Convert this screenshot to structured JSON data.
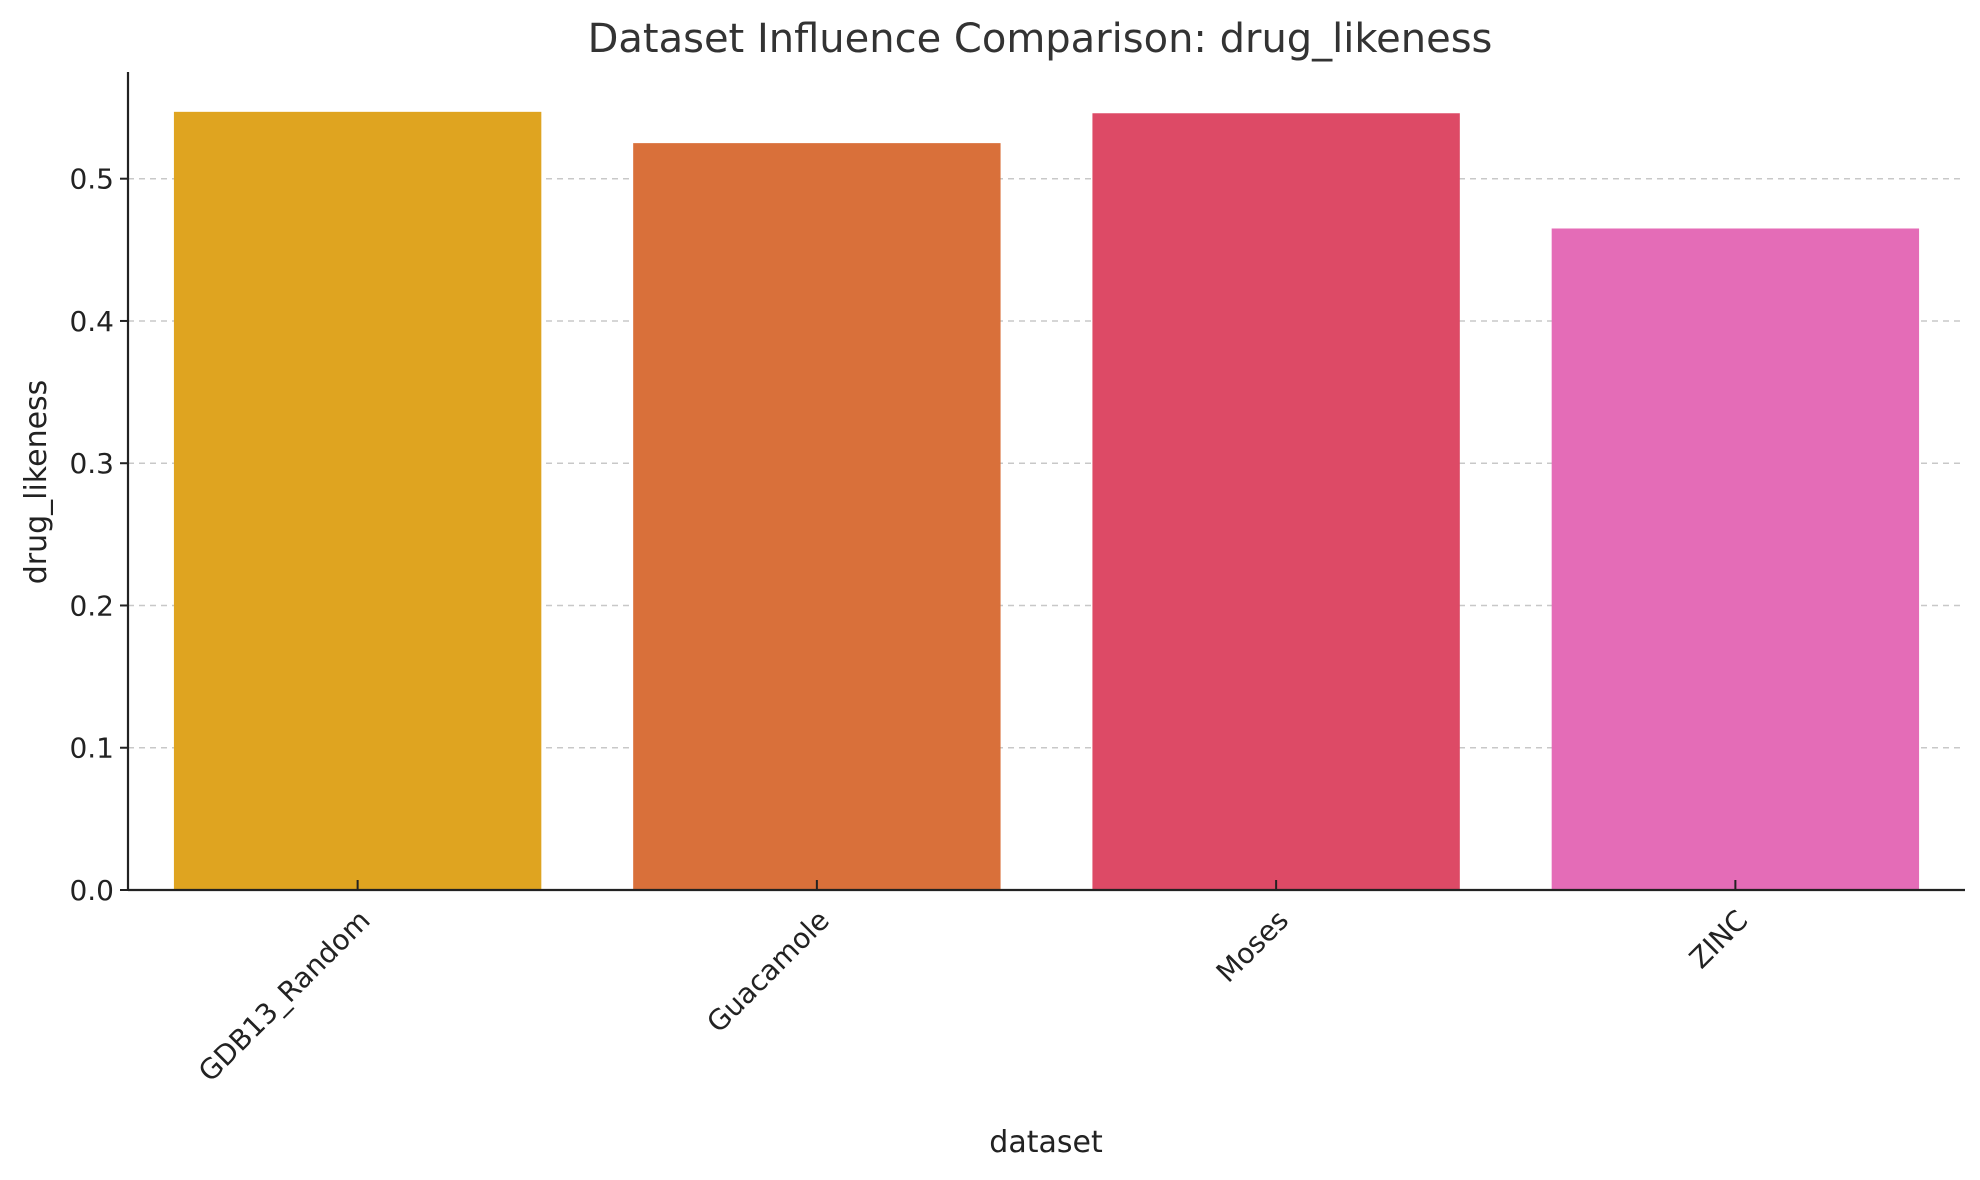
{
  "chart_data": {
    "type": "bar",
    "title": "Dataset Influence Comparison: drug_likeness",
    "xlabel": "dataset",
    "ylabel": "drug_likeness",
    "categories": [
      "GDB13_Random",
      "Guacamole",
      "Moses",
      "ZINC"
    ],
    "values": [
      0.547,
      0.525,
      0.546,
      0.465
    ],
    "colors": [
      "#dfa420",
      "#d9703a",
      "#dd4a66",
      "#e46cb7"
    ],
    "ylim": [
      0,
      0.575
    ],
    "yticks": [
      0.0,
      0.1,
      0.2,
      0.3,
      0.4,
      0.5
    ],
    "ytick_labels": [
      "0.0",
      "0.1",
      "0.2",
      "0.3",
      "0.4",
      "0.5"
    ],
    "grid": "y-dashed",
    "legend": "none"
  }
}
